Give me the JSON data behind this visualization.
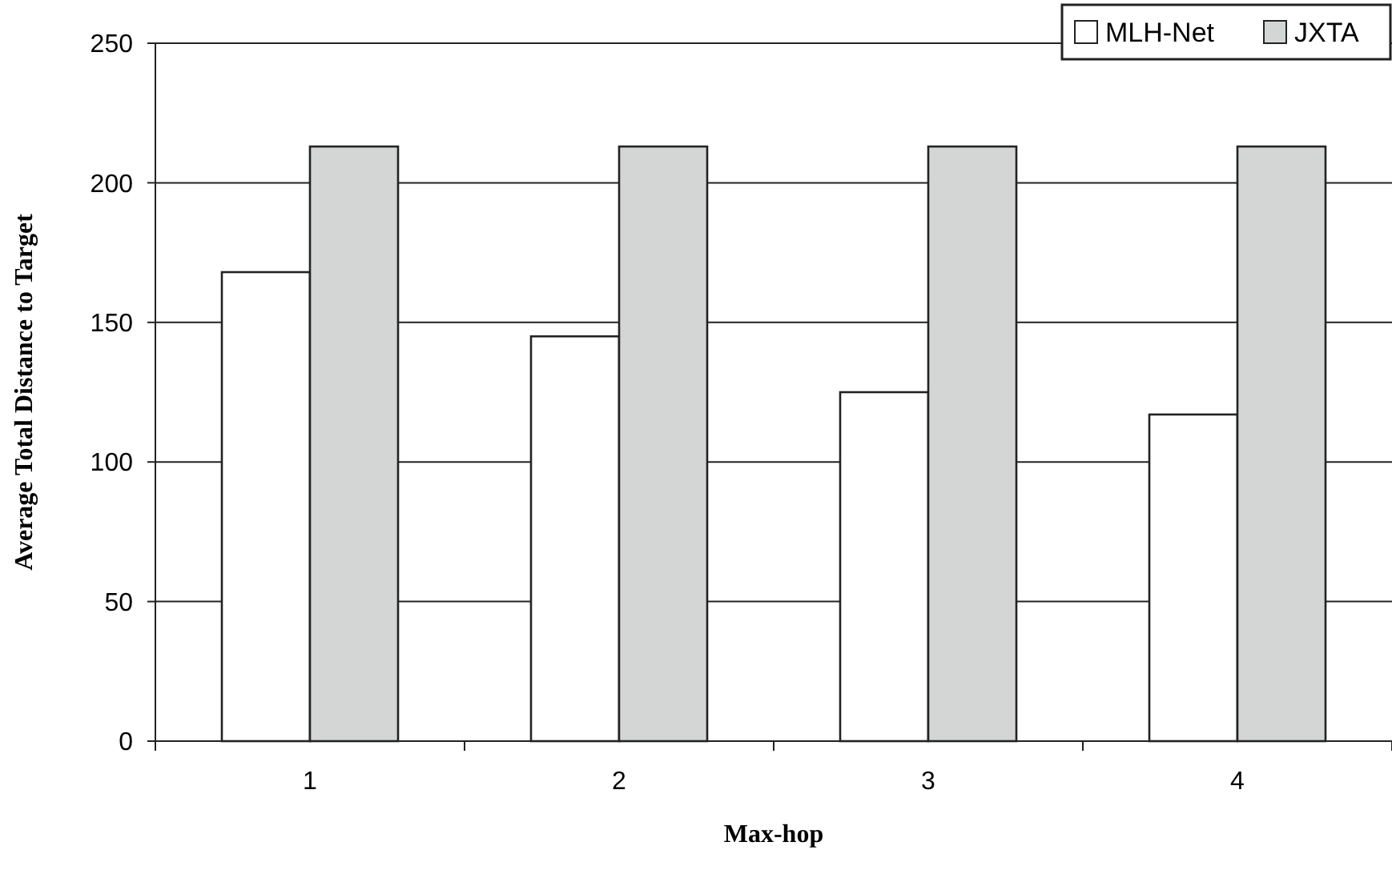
{
  "chart_data": {
    "type": "bar",
    "xlabel": "Max-hop",
    "ylabel": "Average Total Distance to Target",
    "categories": [
      "1",
      "2",
      "3",
      "4"
    ],
    "series": [
      {
        "name": "MLH-Net",
        "color": "#ffffff",
        "values": [
          168,
          145,
          125,
          117
        ]
      },
      {
        "name": "JXTA",
        "color": "#d4d6d6",
        "values": [
          213,
          213,
          213,
          213
        ]
      }
    ],
    "ylim": [
      0,
      250
    ],
    "yticks": [
      0,
      50,
      100,
      150,
      200,
      250
    ],
    "grid": "y",
    "legend": "top right"
  }
}
